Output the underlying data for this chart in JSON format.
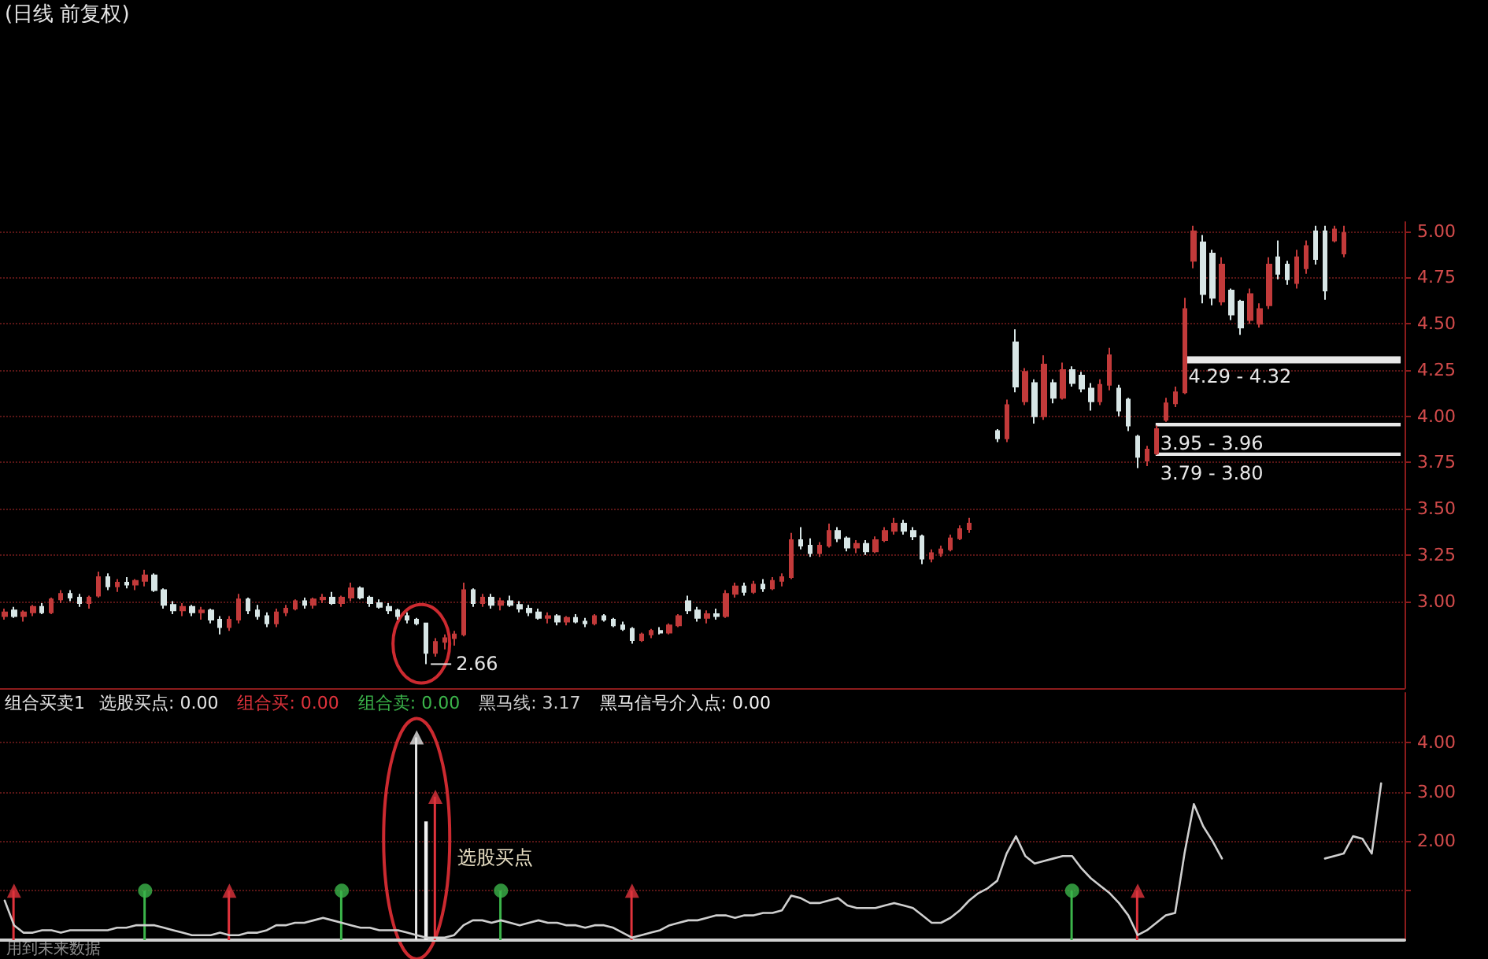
{
  "chart_data": [
    {
      "type": "candlestick",
      "title": "(日线 前复权)",
      "categories": [
        null,
        null,
        null,
        null,
        null,
        null,
        null,
        null,
        null,
        null,
        null,
        null,
        null,
        null,
        null,
        null,
        null,
        null,
        null,
        null,
        null,
        null,
        null,
        null,
        null,
        null,
        null,
        null,
        null,
        null,
        null,
        null,
        null,
        null,
        null,
        null,
        null,
        null,
        null,
        null,
        null,
        null,
        null,
        null,
        null,
        null,
        null,
        null,
        null,
        null,
        null,
        null,
        null,
        null,
        null,
        null,
        null,
        null,
        null,
        null,
        null,
        null,
        null,
        null,
        null,
        null,
        null,
        null,
        null,
        null,
        null,
        null,
        null,
        null,
        null,
        null,
        null,
        null,
        null,
        null,
        null,
        null,
        null,
        null,
        null,
        null,
        null,
        null,
        null,
        null,
        null,
        null,
        null,
        null,
        null,
        null,
        null,
        null,
        null,
        null,
        null,
        null,
        null,
        null,
        null,
        null,
        null,
        null,
        null,
        null,
        null,
        null,
        null,
        null,
        null,
        null,
        null,
        null,
        null,
        null,
        null,
        null,
        null,
        null,
        null,
        null,
        null,
        null,
        null,
        null,
        null,
        null,
        null,
        null,
        null,
        null,
        null,
        null,
        null,
        null,
        null,
        null,
        null,
        null,
        null,
        null,
        null,
        null,
        null,
        null
      ],
      "ohlc": [
        [
          2.92,
          2.96,
          2.9,
          2.94
        ],
        [
          2.95,
          2.97,
          2.91,
          2.92
        ],
        [
          2.92,
          2.95,
          2.89,
          2.94
        ],
        [
          2.94,
          2.98,
          2.92,
          2.97
        ],
        [
          2.97,
          2.99,
          2.93,
          2.94
        ],
        [
          2.94,
          3.02,
          2.93,
          3.01
        ],
        [
          3.01,
          3.06,
          2.99,
          3.04
        ],
        [
          3.04,
          3.06,
          3.0,
          3.02
        ],
        [
          3.02,
          3.04,
          2.97,
          2.99
        ],
        [
          2.99,
          3.03,
          2.96,
          3.02
        ],
        [
          3.03,
          3.16,
          3.02,
          3.13
        ],
        [
          3.13,
          3.15,
          3.06,
          3.08
        ],
        [
          3.08,
          3.12,
          3.05,
          3.1
        ],
        [
          3.1,
          3.13,
          3.07,
          3.09
        ],
        [
          3.09,
          3.12,
          3.06,
          3.11
        ],
        [
          3.11,
          3.17,
          3.08,
          3.14
        ],
        [
          3.14,
          3.15,
          3.05,
          3.06
        ],
        [
          3.06,
          3.07,
          2.96,
          2.98
        ],
        [
          2.98,
          3.0,
          2.93,
          2.95
        ],
        [
          2.95,
          2.99,
          2.92,
          2.97
        ],
        [
          2.97,
          2.98,
          2.92,
          2.94
        ],
        [
          2.94,
          2.97,
          2.9,
          2.95
        ],
        [
          2.95,
          2.96,
          2.88,
          2.9
        ],
        [
          2.9,
          2.92,
          2.82,
          2.86
        ],
        [
          2.86,
          2.92,
          2.84,
          2.9
        ],
        [
          2.9,
          3.04,
          2.88,
          3.01
        ],
        [
          3.01,
          3.02,
          2.93,
          2.95
        ],
        [
          2.95,
          2.98,
          2.9,
          2.92
        ],
        [
          2.92,
          2.94,
          2.86,
          2.88
        ],
        [
          2.88,
          2.96,
          2.86,
          2.94
        ],
        [
          2.94,
          2.98,
          2.92,
          2.96
        ],
        [
          2.96,
          3.01,
          2.95,
          3.0
        ],
        [
          3.0,
          3.02,
          2.96,
          2.98
        ],
        [
          2.98,
          3.02,
          2.96,
          3.01
        ],
        [
          3.01,
          3.04,
          2.99,
          3.02
        ],
        [
          3.02,
          3.05,
          2.98,
          2.99
        ],
        [
          2.99,
          3.03,
          2.97,
          3.02
        ],
        [
          3.02,
          3.1,
          3.0,
          3.07
        ],
        [
          3.07,
          3.08,
          3.01,
          3.02
        ],
        [
          3.02,
          3.03,
          2.97,
          2.99
        ],
        [
          2.99,
          3.01,
          2.96,
          2.97
        ],
        [
          2.97,
          2.99,
          2.93,
          2.95
        ],
        [
          2.95,
          2.96,
          2.9,
          2.92
        ],
        [
          2.92,
          2.94,
          2.88,
          2.9
        ],
        [
          2.9,
          2.91,
          2.87,
          2.88
        ],
        [
          2.88,
          2.88,
          2.66,
          2.72
        ],
        [
          2.72,
          2.8,
          2.7,
          2.78
        ],
        [
          2.78,
          2.82,
          2.74,
          2.8
        ],
        [
          2.8,
          2.84,
          2.76,
          2.82
        ],
        [
          2.82,
          3.1,
          2.81,
          3.06
        ],
        [
          3.06,
          3.07,
          2.97,
          2.99
        ],
        [
          2.99,
          3.04,
          2.97,
          3.02
        ],
        [
          3.02,
          3.04,
          2.96,
          2.98
        ],
        [
          2.98,
          3.02,
          2.95,
          3.0
        ],
        [
          3.0,
          3.03,
          2.97,
          2.98
        ],
        [
          2.98,
          3.0,
          2.94,
          2.96
        ],
        [
          2.96,
          2.98,
          2.92,
          2.94
        ],
        [
          2.94,
          2.96,
          2.9,
          2.91
        ],
        [
          2.91,
          2.94,
          2.88,
          2.92
        ],
        [
          2.92,
          2.93,
          2.87,
          2.89
        ],
        [
          2.89,
          2.92,
          2.87,
          2.91
        ],
        [
          2.91,
          2.93,
          2.88,
          2.89
        ],
        [
          2.89,
          2.91,
          2.86,
          2.88
        ],
        [
          2.88,
          2.93,
          2.87,
          2.92
        ],
        [
          2.92,
          2.93,
          2.89,
          2.9
        ],
        [
          2.9,
          2.91,
          2.86,
          2.87
        ],
        [
          2.87,
          2.89,
          2.84,
          2.85
        ],
        [
          2.85,
          2.86,
          2.77,
          2.79
        ],
        [
          2.79,
          2.83,
          2.78,
          2.82
        ],
        [
          2.82,
          2.85,
          2.8,
          2.84
        ],
        [
          2.84,
          2.86,
          2.82,
          2.83
        ],
        [
          2.83,
          2.88,
          2.82,
          2.87
        ],
        [
          2.87,
          2.93,
          2.86,
          2.92
        ],
        [
          3.0,
          3.03,
          2.93,
          2.95
        ],
        [
          2.95,
          2.97,
          2.89,
          2.91
        ],
        [
          2.91,
          2.95,
          2.88,
          2.93
        ],
        [
          2.93,
          2.96,
          2.9,
          2.92
        ],
        [
          2.92,
          3.06,
          2.91,
          3.04
        ],
        [
          3.04,
          3.1,
          3.02,
          3.08
        ],
        [
          3.08,
          3.1,
          3.03,
          3.05
        ],
        [
          3.05,
          3.11,
          3.04,
          3.09
        ],
        [
          3.09,
          3.12,
          3.05,
          3.07
        ],
        [
          3.07,
          3.13,
          3.06,
          3.11
        ],
        [
          3.11,
          3.15,
          3.08,
          3.13
        ],
        [
          3.13,
          3.37,
          3.12,
          3.33
        ],
        [
          3.33,
          3.4,
          3.28,
          3.3
        ],
        [
          3.3,
          3.34,
          3.24,
          3.26
        ],
        [
          3.26,
          3.32,
          3.24,
          3.3
        ],
        [
          3.3,
          3.42,
          3.29,
          3.38
        ],
        [
          3.38,
          3.4,
          3.32,
          3.34
        ],
        [
          3.34,
          3.35,
          3.27,
          3.29
        ],
        [
          3.29,
          3.33,
          3.26,
          3.31
        ],
        [
          3.31,
          3.33,
          3.25,
          3.27
        ],
        [
          3.27,
          3.35,
          3.26,
          3.33
        ],
        [
          3.33,
          3.4,
          3.32,
          3.38
        ],
        [
          3.38,
          3.45,
          3.36,
          3.42
        ],
        [
          3.42,
          3.44,
          3.36,
          3.38
        ],
        [
          3.38,
          3.4,
          3.33,
          3.35
        ],
        [
          3.35,
          3.36,
          3.2,
          3.23
        ],
        [
          3.23,
          3.28,
          3.21,
          3.26
        ],
        [
          3.26,
          3.3,
          3.24,
          3.28
        ],
        [
          3.28,
          3.36,
          3.27,
          3.34
        ],
        [
          3.34,
          3.41,
          3.33,
          3.39
        ],
        [
          3.39,
          3.45,
          3.37,
          3.42
        ],
        null,
        null,
        [
          3.92,
          3.93,
          3.86,
          3.88
        ],
        [
          3.88,
          4.09,
          3.86,
          4.06
        ],
        [
          4.4,
          4.47,
          4.13,
          4.16
        ],
        [
          4.08,
          4.26,
          4.06,
          4.24
        ],
        [
          4.18,
          4.2,
          3.96,
          4.0
        ],
        [
          4.0,
          4.33,
          3.98,
          4.28
        ],
        [
          4.18,
          4.2,
          4.07,
          4.1
        ],
        [
          4.1,
          4.29,
          4.09,
          4.25
        ],
        [
          4.25,
          4.27,
          4.16,
          4.18
        ],
        [
          4.22,
          4.24,
          4.13,
          4.15
        ],
        [
          4.15,
          4.18,
          4.03,
          4.08
        ],
        [
          4.08,
          4.2,
          4.06,
          4.17
        ],
        [
          4.17,
          4.37,
          4.14,
          4.33
        ],
        [
          4.15,
          4.17,
          4.0,
          4.03
        ],
        [
          4.09,
          4.1,
          3.92,
          3.95
        ],
        [
          3.89,
          3.9,
          3.72,
          3.78
        ],
        [
          3.76,
          3.84,
          3.73,
          3.82
        ],
        [
          3.8,
          3.95,
          3.79,
          3.93
        ],
        [
          3.98,
          4.1,
          3.97,
          4.07
        ],
        [
          4.07,
          4.16,
          4.05,
          4.13
        ],
        [
          4.13,
          4.64,
          4.12,
          4.58
        ],
        [
          4.84,
          5.03,
          4.8,
          5.0
        ],
        [
          4.94,
          4.98,
          4.61,
          4.66
        ],
        [
          4.88,
          4.9,
          4.6,
          4.64
        ],
        [
          4.62,
          4.86,
          4.6,
          4.82
        ],
        [
          4.68,
          4.69,
          4.52,
          4.55
        ],
        [
          4.62,
          4.63,
          4.44,
          4.48
        ],
        [
          4.52,
          4.69,
          4.5,
          4.66
        ],
        [
          4.5,
          4.61,
          4.48,
          4.58
        ],
        [
          4.6,
          4.86,
          4.58,
          4.82
        ],
        [
          4.86,
          4.95,
          4.74,
          4.77
        ],
        [
          4.82,
          4.84,
          4.71,
          4.74
        ],
        [
          4.72,
          4.9,
          4.69,
          4.86
        ],
        [
          4.8,
          4.95,
          4.77,
          4.92
        ],
        [
          5.0,
          5.03,
          4.82,
          4.85
        ],
        [
          5.0,
          5.03,
          4.63,
          4.68
        ],
        [
          4.95,
          5.03,
          4.94,
          5.01
        ],
        [
          4.88,
          5.03,
          4.86,
          4.99
        ],
        null,
        null,
        null,
        null,
        null,
        null
      ],
      "colors": [
        "#c23a3a",
        "#d8e6e6",
        "#c23a3a",
        "#c23a3a",
        "#d8e6e6",
        "#c23a3a",
        "#c23a3a",
        "#d8e6e6",
        "#d8e6e6",
        "#c23a3a",
        "#c23a3a",
        "#d8e6e6",
        "#c23a3a",
        "#d8e6e6",
        "#c23a3a",
        "#c23a3a",
        "#d8e6e6",
        "#d8e6e6",
        "#d8e6e6",
        "#c23a3a",
        "#d8e6e6",
        "#c23a3a",
        "#d8e6e6",
        "#d8e6e6",
        "#c23a3a",
        "#c23a3a",
        "#d8e6e6",
        "#d8e6e6",
        "#d8e6e6",
        "#c23a3a",
        "#c23a3a",
        "#c23a3a",
        "#d8e6e6",
        "#c23a3a",
        "#c23a3a",
        "#d8e6e6",
        "#c23a3a",
        "#c23a3a",
        "#d8e6e6",
        "#d8e6e6",
        "#d8e6e6",
        "#d8e6e6",
        "#d8e6e6",
        "#d8e6e6",
        "#d8e6e6",
        "#d8e6e6",
        "#c23a3a",
        "#c23a3a",
        "#c23a3a",
        "#c23a3a",
        "#d8e6e6",
        "#c23a3a",
        "#d8e6e6",
        "#c23a3a",
        "#d8e6e6",
        "#d8e6e6",
        "#d8e6e6",
        "#d8e6e6",
        "#c23a3a",
        "#d8e6e6",
        "#c23a3a",
        "#d8e6e6",
        "#d8e6e6",
        "#c23a3a",
        "#d8e6e6",
        "#d8e6e6",
        "#d8e6e6",
        "#d8e6e6",
        "#c23a3a",
        "#c23a3a",
        "#d8e6e6",
        "#c23a3a",
        "#c23a3a",
        "#d8e6e6",
        "#d8e6e6",
        "#c23a3a",
        "#d8e6e6",
        "#c23a3a",
        "#c23a3a",
        "#d8e6e6",
        "#c23a3a",
        "#d8e6e6",
        "#c23a3a",
        "#c23a3a",
        "#c23a3a",
        "#d8e6e6",
        "#d8e6e6",
        "#c23a3a",
        "#c23a3a",
        "#d8e6e6",
        "#d8e6e6",
        "#c23a3a",
        "#d8e6e6",
        "#c23a3a",
        "#c23a3a",
        "#c23a3a",
        "#d8e6e6",
        "#d8e6e6",
        "#d8e6e6",
        "#c23a3a",
        "#c23a3a",
        "#c23a3a",
        "#c23a3a",
        "#c23a3a",
        null,
        null,
        "#d8e6e6",
        "#c23a3a",
        "#d8e6e6",
        "#c23a3a",
        "#d8e6e6",
        "#c23a3a",
        "#d8e6e6",
        "#c23a3a",
        "#d8e6e6",
        "#d8e6e6",
        "#d8e6e6",
        "#c23a3a",
        "#c23a3a",
        "#d8e6e6",
        "#d8e6e6",
        "#d8e6e6",
        "#c23a3a",
        "#c23a3a",
        "#c23a3a",
        "#c23a3a",
        "#c23a3a",
        "#c23a3a",
        "#d8e6e6",
        "#d8e6e6",
        "#c23a3a",
        "#d8e6e6",
        "#d8e6e6",
        "#c23a3a",
        "#c23a3a",
        "#c23a3a",
        "#d8e6e6",
        "#d8e6e6",
        "#c23a3a",
        "#c23a3a",
        "#d8e6e6",
        "#d8e6e6",
        "#c23a3a",
        "#c23a3a",
        null,
        null,
        null,
        null,
        null,
        null
      ],
      "ylim": [
        2.53,
        5.05
      ],
      "yticks": [
        {
          "value": 3,
          "label": "3.00"
        },
        3.25,
        {
          "value": 3.5,
          "label": "3.50"
        },
        3.75,
        {
          "value": 4,
          "label": "4.00"
        },
        4.25,
        {
          "value": 4.5,
          "label": "4.50"
        },
        4.75,
        {
          "value": 5,
          "label": "5.00"
        }
      ],
      "grid": "y",
      "tick_labels": "y",
      "bands": [
        {
          "axis": "y",
          "from": 4.29,
          "to": 4.32,
          "label": "4.29 - 4.32",
          "color": "#e8e8e8"
        },
        {
          "axis": "y",
          "from": 3.95,
          "to": 3.96,
          "label": "3.95 - 3.96",
          "color": "#e8e8e8"
        },
        {
          "axis": "y",
          "from": 3.79,
          "to": 3.8,
          "label": "3.79 - 3.80",
          "color": "#e8e8e8"
        }
      ],
      "annotations": [
        "2.66"
      ]
    },
    {
      "type": "line",
      "title": "组合买卖1",
      "categories": [
        null,
        null,
        null,
        null,
        null,
        null,
        null,
        null,
        null,
        null,
        null,
        null,
        null,
        null,
        null,
        null,
        null,
        null,
        null,
        null,
        null,
        null,
        null,
        null,
        null,
        null,
        null,
        null,
        null,
        null,
        null,
        null,
        null,
        null,
        null,
        null,
        null,
        null,
        null,
        null,
        null,
        null,
        null,
        null,
        null,
        null,
        null,
        null,
        null,
        null,
        null,
        null,
        null,
        null,
        null,
        null,
        null,
        null,
        null,
        null,
        null,
        null,
        null,
        null,
        null,
        null,
        null,
        null,
        null,
        null,
        null,
        null,
        null,
        null,
        null,
        null,
        null,
        null,
        null,
        null,
        null,
        null,
        null,
        null,
        null,
        null,
        null,
        null,
        null,
        null,
        null,
        null,
        null,
        null,
        null,
        null,
        null,
        null,
        null,
        null,
        null,
        null,
        null,
        null,
        null,
        null,
        null,
        null,
        null,
        null,
        null,
        null,
        null,
        null,
        null,
        null,
        null,
        null,
        null,
        null,
        null,
        null,
        null,
        null,
        null,
        null,
        null,
        null,
        null,
        null,
        null,
        null,
        null,
        null,
        null,
        null,
        null,
        null,
        null,
        null,
        null,
        null,
        null,
        null,
        null,
        null,
        null,
        null,
        null,
        null
      ],
      "series": [
        {
          "name": "选股买点: 0.00",
          "type": "lollipop",
          "marker": "triangle",
          "color": "#e4e4e4",
          "values": [
            null,
            null,
            null,
            null,
            null,
            null,
            null,
            null,
            null,
            null,
            null,
            null,
            null,
            null,
            null,
            null,
            null,
            null,
            null,
            null,
            null,
            null,
            null,
            null,
            null,
            null,
            null,
            null,
            null,
            null,
            null,
            null,
            null,
            null,
            null,
            null,
            null,
            null,
            null,
            null,
            null,
            null,
            null,
            null,
            4.1,
            null,
            null,
            null,
            null,
            null,
            null,
            null,
            null,
            null,
            null,
            null,
            null,
            null,
            null,
            null,
            null,
            null,
            null,
            null,
            null,
            null,
            null,
            null,
            null,
            null,
            null,
            null,
            null,
            null,
            null,
            null,
            null,
            null,
            null,
            null,
            null,
            null,
            null,
            null,
            null,
            null,
            null,
            null,
            null,
            null,
            null,
            null,
            null,
            null,
            null,
            null,
            null,
            null,
            null,
            null,
            null,
            null,
            null,
            null,
            null,
            null,
            null,
            null,
            null,
            null,
            null,
            null,
            null,
            null,
            null,
            null,
            null,
            null,
            null,
            null,
            null,
            null,
            null,
            null,
            null,
            null,
            null,
            null,
            null,
            null,
            null,
            null,
            null,
            null,
            null,
            null,
            null,
            null,
            null,
            null,
            null,
            null,
            null,
            null,
            null,
            null,
            null,
            null,
            null,
            null
          ]
        },
        {
          "name": "组合买: 0.00",
          "type": "lollipop",
          "marker": "triangle",
          "color": "#e0333c",
          "values": [
            null,
            1,
            null,
            null,
            null,
            null,
            null,
            null,
            null,
            null,
            null,
            null,
            null,
            null,
            null,
            null,
            null,
            null,
            null,
            null,
            null,
            null,
            null,
            null,
            1,
            null,
            null,
            null,
            null,
            null,
            null,
            null,
            null,
            null,
            null,
            null,
            null,
            null,
            null,
            null,
            null,
            null,
            null,
            null,
            null,
            null,
            2.9,
            null,
            null,
            null,
            null,
            null,
            null,
            null,
            null,
            null,
            null,
            null,
            null,
            null,
            null,
            null,
            null,
            null,
            null,
            null,
            null,
            1,
            null,
            null,
            null,
            null,
            null,
            null,
            null,
            null,
            null,
            null,
            null,
            null,
            null,
            null,
            null,
            null,
            null,
            null,
            null,
            null,
            null,
            null,
            null,
            null,
            null,
            null,
            null,
            null,
            null,
            null,
            null,
            null,
            null,
            null,
            null,
            null,
            null,
            null,
            null,
            null,
            null,
            null,
            null,
            null,
            null,
            null,
            null,
            null,
            null,
            null,
            null,
            null,
            null,
            1,
            null,
            null,
            null,
            null,
            null,
            null,
            null,
            null,
            null,
            null,
            null,
            null,
            null,
            null,
            null,
            null,
            null,
            null,
            null,
            null,
            null,
            null,
            null,
            null,
            null,
            null,
            null,
            null
          ]
        },
        {
          "name": "组合卖: 0.00",
          "type": "lollipop",
          "marker": "circle",
          "color": "#3bb44a",
          "values": [
            null,
            null,
            null,
            null,
            null,
            null,
            null,
            null,
            null,
            null,
            null,
            null,
            null,
            null,
            null,
            1,
            null,
            null,
            null,
            null,
            null,
            null,
            null,
            null,
            null,
            null,
            null,
            null,
            null,
            null,
            null,
            null,
            null,
            null,
            null,
            null,
            1,
            null,
            null,
            null,
            null,
            null,
            null,
            null,
            null,
            null,
            null,
            null,
            null,
            null,
            null,
            null,
            null,
            1,
            null,
            null,
            null,
            null,
            null,
            null,
            null,
            null,
            null,
            null,
            null,
            null,
            null,
            null,
            null,
            null,
            null,
            null,
            null,
            null,
            null,
            null,
            null,
            null,
            null,
            null,
            null,
            null,
            null,
            null,
            null,
            null,
            null,
            null,
            null,
            null,
            null,
            null,
            null,
            null,
            null,
            null,
            null,
            null,
            null,
            null,
            null,
            null,
            null,
            null,
            null,
            null,
            null,
            null,
            null,
            null,
            null,
            null,
            null,
            null,
            1,
            null,
            null,
            null,
            null,
            null,
            null,
            null,
            null,
            null,
            null,
            null,
            null,
            null,
            null,
            null,
            null,
            null,
            null,
            null,
            null,
            null,
            null,
            null,
            null,
            null,
            null,
            null,
            null,
            null,
            null,
            null,
            null,
            null,
            null,
            null
          ]
        },
        {
          "name": "黑马线: 3.17",
          "type": "line",
          "marker": "none",
          "color": "#cfcfcf",
          "values": [
            0.8,
            0.3,
            0.15,
            0.15,
            0.2,
            0.2,
            0.15,
            0.2,
            0.2,
            0.2,
            0.2,
            0.2,
            0.25,
            0.25,
            0.3,
            0.3,
            0.3,
            0.25,
            0.2,
            0.15,
            0.1,
            0.1,
            0.1,
            0.15,
            0.1,
            0.1,
            0.15,
            0.15,
            0.2,
            0.3,
            0.3,
            0.35,
            0.35,
            0.4,
            0.45,
            0.4,
            0.35,
            0.3,
            0.25,
            0.25,
            0.2,
            0.2,
            0.2,
            0.15,
            0.1,
            0.05,
            0.05,
            0.05,
            0.1,
            0.3,
            0.4,
            0.4,
            0.35,
            0.4,
            0.35,
            0.3,
            0.35,
            0.4,
            0.35,
            0.35,
            0.3,
            0.3,
            0.25,
            0.3,
            0.3,
            0.25,
            0.15,
            0.05,
            0.1,
            0.15,
            0.2,
            0.3,
            0.35,
            0.4,
            0.4,
            0.45,
            0.5,
            0.5,
            0.45,
            0.5,
            0.5,
            0.55,
            0.55,
            0.6,
            0.9,
            0.85,
            0.75,
            0.75,
            0.8,
            0.85,
            0.7,
            0.65,
            0.65,
            0.65,
            0.7,
            0.75,
            0.7,
            0.65,
            0.5,
            0.35,
            0.35,
            0.45,
            0.6,
            0.8,
            0.95,
            1.05,
            1.2,
            1.75,
            2.1,
            1.7,
            1.55,
            1.6,
            1.65,
            1.7,
            1.7,
            1.45,
            1.25,
            1.1,
            0.95,
            0.75,
            0.5,
            0.1,
            0.2,
            0.35,
            0.5,
            0.55,
            1.75,
            2.75,
            2.3,
            2.0,
            1.65,
            null,
            null,
            null,
            null,
            null,
            null,
            null,
            null,
            null,
            null,
            1.65,
            1.7,
            1.75,
            2.1,
            2.05,
            1.75,
            3.17,
            null,
            null
          ]
        },
        {
          "name": "黑马信号介入点: 0.00",
          "type": "bar",
          "color": "#f2f2f2",
          "values": [
            null,
            null,
            null,
            null,
            null,
            null,
            null,
            null,
            null,
            null,
            null,
            null,
            null,
            null,
            null,
            null,
            null,
            null,
            null,
            null,
            null,
            null,
            null,
            null,
            null,
            null,
            null,
            null,
            null,
            null,
            null,
            null,
            null,
            null,
            null,
            null,
            null,
            null,
            null,
            null,
            null,
            null,
            null,
            null,
            null,
            2.4,
            null,
            null,
            null,
            null,
            null,
            null,
            null,
            null,
            null,
            null,
            null,
            null,
            null,
            null,
            null,
            null,
            null,
            null,
            null,
            null,
            null,
            null,
            null,
            null,
            null,
            null,
            null,
            null,
            null,
            null,
            null,
            null,
            null,
            null,
            null,
            null,
            null,
            null,
            null,
            null,
            null,
            null,
            null,
            null,
            null,
            null,
            null,
            null,
            null,
            null,
            null,
            null,
            null,
            null,
            null,
            null,
            null,
            null,
            null,
            null,
            null,
            null,
            null,
            null,
            null,
            null,
            null,
            null,
            null,
            null,
            null,
            null,
            null,
            null,
            null,
            null,
            null,
            null,
            null,
            null,
            null,
            null,
            null,
            null,
            null,
            null,
            null,
            null,
            null,
            null,
            null,
            null,
            null,
            null,
            null,
            null,
            null,
            null,
            null,
            null,
            null,
            null,
            null,
            null
          ]
        }
      ],
      "ylim": [
        0,
        5
      ],
      "yticks": [
        {
          "value": 1,
          "label": null
        },
        {
          "value": 2,
          "label": "2.00"
        },
        {
          "value": 3,
          "label": "3.00"
        },
        {
          "value": 4,
          "label": "4.00"
        }
      ],
      "grid": "y",
      "legend": "top left",
      "tick_labels": "y",
      "annotations": [
        "选股买点",
        "用到未来数据"
      ]
    }
  ]
}
